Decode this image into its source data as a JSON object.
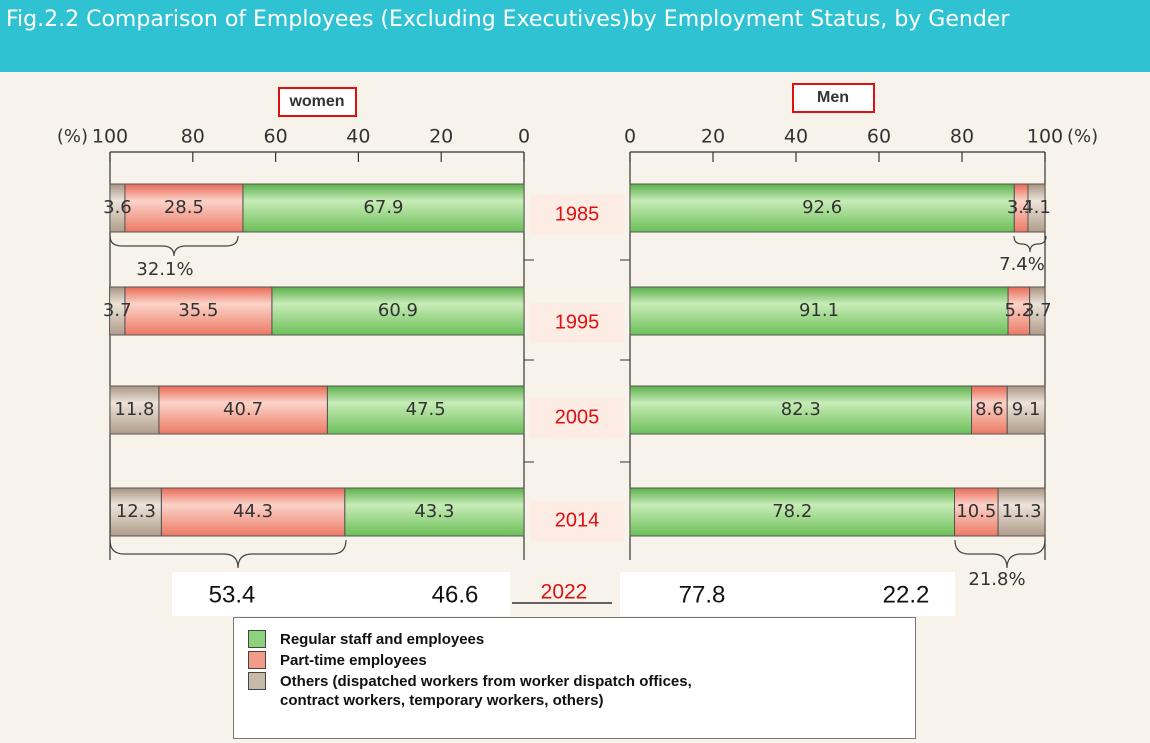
{
  "title": "Fig.2.2 Comparison of Employees (Excluding Executives)by Employment Status, by Gender",
  "chart_data": {
    "type": "bar",
    "orientation": "horizontal",
    "stacked": true,
    "unit": "(%)",
    "categories": [
      "1985",
      "1995",
      "2005",
      "2014"
    ],
    "legend": [
      {
        "name": "Regular staff and employees",
        "color": "#8fd27c"
      },
      {
        "name": "Part-time employees",
        "color": "#f39a88"
      },
      {
        "name": "Others (dispatched workers from worker dispatch offices, contract workers, temporary workers, others)",
        "color": "#c9b9a9"
      }
    ],
    "panels": [
      {
        "label": "women",
        "reversed": true,
        "xlim": [
          0,
          100
        ],
        "xticks": [
          0,
          20,
          40,
          60,
          80,
          100
        ],
        "series": [
          [
            67.9,
            60.9,
            47.5,
            43.3
          ],
          [
            28.5,
            35.5,
            40.7,
            44.3
          ],
          [
            3.6,
            3.7,
            11.8,
            12.3
          ]
        ],
        "annotations": [
          "32.1%"
        ]
      },
      {
        "label": "Men",
        "reversed": false,
        "xlim": [
          0,
          100
        ],
        "xticks": [
          0,
          20,
          40,
          60,
          80,
          100
        ],
        "series": [
          [
            92.6,
            91.1,
            82.3,
            78.2
          ],
          [
            3.3,
            5.2,
            8.6,
            10.5
          ],
          [
            4.1,
            3.7,
            9.1,
            11.3
          ]
        ],
        "annotations": [
          "7.4%",
          "21.8%"
        ]
      }
    ],
    "extra_row": {
      "label": "2022",
      "women": [
        53.4,
        46.6
      ],
      "men": [
        77.8,
        22.2
      ]
    }
  }
}
